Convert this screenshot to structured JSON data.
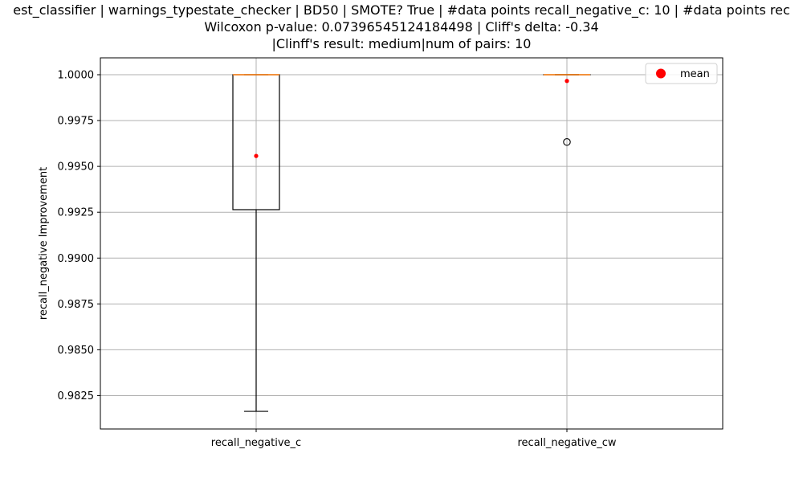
{
  "chart_data": {
    "type": "box",
    "title_lines": [
      "est_classifier | warnings_typestate_checker | BD50 | SMOTE? True | #data points recall_negative_c: 10 | #data points rec",
      "Wilcoxon p-value: 0.07396545124184498 | Cliff's delta: -0.34",
      "|Clinff's result: medium|num of pairs: 10"
    ],
    "ylabel": "recall_negative Improvement",
    "xlabel": "",
    "ylim": [
      0.98068,
      1.00092
    ],
    "yticks": [
      0.9825,
      0.985,
      0.9875,
      0.99,
      0.9925,
      0.995,
      0.9975,
      1.0
    ],
    "ytick_labels": [
      "0.9825",
      "0.9850",
      "0.9875",
      "0.9900",
      "0.9925",
      "0.9950",
      "0.9975",
      "1.0000"
    ],
    "categories": [
      "recall_negative_c",
      "recall_negative_cw"
    ],
    "boxes": [
      {
        "name": "recall_negative_c",
        "whisker_low": 0.98164,
        "q1": 0.99264,
        "median": 1.0,
        "q3": 1.0,
        "whisker_high": 1.0,
        "mean": 0.99557,
        "outliers": []
      },
      {
        "name": "recall_negative_cw",
        "whisker_low": 1.0,
        "q1": 1.0,
        "median": 1.0,
        "q3": 1.0,
        "whisker_high": 1.0,
        "mean": 0.99966,
        "outliers": [
          0.99633
        ]
      }
    ],
    "legend": {
      "label": "mean",
      "position": "top-right"
    },
    "grid": true,
    "colors": {
      "median": "#ff7f0e",
      "mean": "#ff0000",
      "grid": "#b0b0b0",
      "box": "#000000"
    }
  }
}
